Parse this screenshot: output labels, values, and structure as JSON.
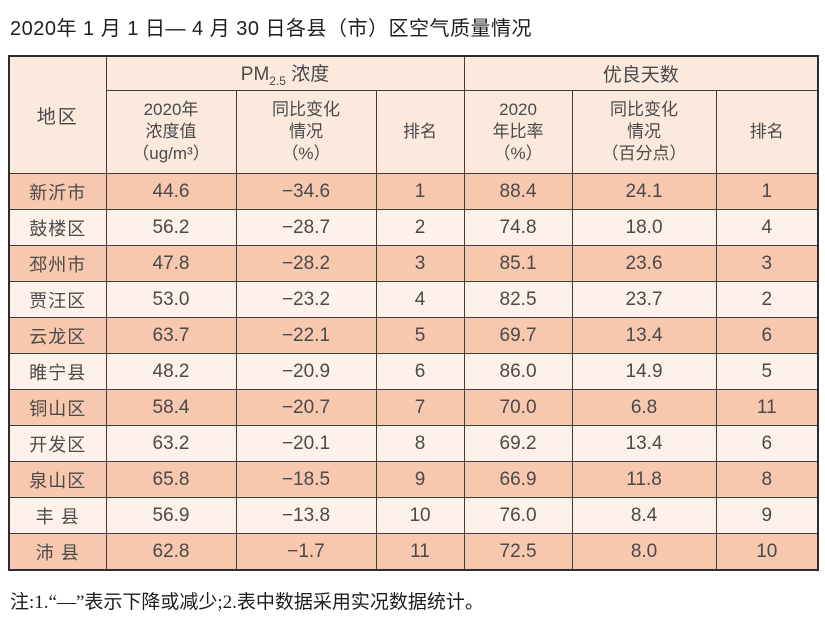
{
  "title": "2020年 1 月 1 日— 4 月 30 日各县（市）区空气质量情况",
  "table": {
    "region_header": "地区",
    "pm25_group": {
      "prefix": "PM",
      "subscript": "2.5",
      "suffix": " 浓度"
    },
    "good_days_group": "优良天数",
    "sub_headers": [
      [
        "2020年",
        "浓度值",
        "（ug/m³）"
      ],
      [
        "同比变化",
        "情况",
        "（%）"
      ],
      [
        "排名"
      ],
      [
        "2020",
        "年比率",
        "（%）"
      ],
      [
        "同比变化",
        "情况",
        "（百分点）"
      ],
      [
        "排名"
      ]
    ],
    "rows": [
      [
        "新沂市",
        "44.6",
        "−34.6",
        "1",
        "88.4",
        "24.1",
        "1"
      ],
      [
        "鼓楼区",
        "56.2",
        "−28.7",
        "2",
        "74.8",
        "18.0",
        "4"
      ],
      [
        "邳州市",
        "47.8",
        "−28.2",
        "3",
        "85.1",
        "23.6",
        "3"
      ],
      [
        "贾汪区",
        "53.0",
        "−23.2",
        "4",
        "82.5",
        "23.7",
        "2"
      ],
      [
        "云龙区",
        "63.7",
        "−22.1",
        "5",
        "69.7",
        "13.4",
        "6"
      ],
      [
        "睢宁县",
        "48.2",
        "−20.9",
        "6",
        "86.0",
        "14.9",
        "5"
      ],
      [
        "铜山区",
        "58.4",
        "−20.7",
        "7",
        "70.0",
        "6.8",
        "11"
      ],
      [
        "开发区",
        "63.2",
        "−20.1",
        "8",
        "69.2",
        "13.4",
        "6"
      ],
      [
        "泉山区",
        "65.8",
        "−18.5",
        "9",
        "66.9",
        "11.8",
        "8"
      ],
      [
        "丰 县",
        "56.9",
        "−13.8",
        "10",
        "76.0",
        "8.4",
        "9"
      ],
      [
        "沛 县",
        "62.8",
        "−1.7",
        "11",
        "72.5",
        "8.0",
        "10"
      ]
    ]
  },
  "footnote": "注:1.“—”表示下降或减少;2.表中数据采用实况数据统计。",
  "colors": {
    "row_odd_bg": "#f7c7ae",
    "row_even_bg": "#fdf1e9",
    "header_bg": "#fbe9de",
    "border": "#3e3e3e",
    "text": "#4a4a4a"
  }
}
